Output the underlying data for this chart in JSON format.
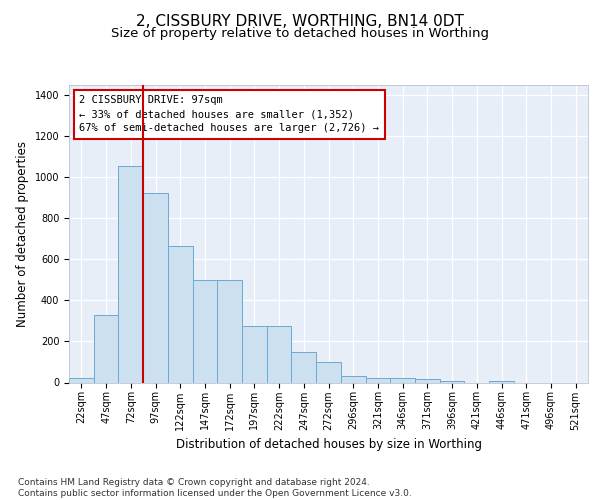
{
  "title": "2, CISSBURY DRIVE, WORTHING, BN14 0DT",
  "subtitle": "Size of property relative to detached houses in Worthing",
  "xlabel": "Distribution of detached houses by size in Worthing",
  "ylabel": "Number of detached properties",
  "categories": [
    "22sqm",
    "47sqm",
    "72sqm",
    "97sqm",
    "122sqm",
    "147sqm",
    "172sqm",
    "197sqm",
    "222sqm",
    "247sqm",
    "272sqm",
    "296sqm",
    "321sqm",
    "346sqm",
    "371sqm",
    "396sqm",
    "421sqm",
    "446sqm",
    "471sqm",
    "496sqm",
    "521sqm"
  ],
  "values": [
    20,
    330,
    1055,
    925,
    665,
    500,
    500,
    275,
    275,
    150,
    100,
    33,
    20,
    20,
    15,
    8,
    0,
    8,
    0,
    0,
    0
  ],
  "bar_color": "#cce0f0",
  "bar_edge_color": "#6aaad4",
  "highlight_bar_index": 3,
  "highlight_color": "#cc0000",
  "annotation_text": "2 CISSBURY DRIVE: 97sqm\n← 33% of detached houses are smaller (1,352)\n67% of semi-detached houses are larger (2,726) →",
  "annotation_box_color": "#ffffff",
  "annotation_box_edge_color": "#cc0000",
  "ylim": [
    0,
    1450
  ],
  "yticks": [
    0,
    200,
    400,
    600,
    800,
    1000,
    1200,
    1400
  ],
  "footer": "Contains HM Land Registry data © Crown copyright and database right 2024.\nContains public sector information licensed under the Open Government Licence v3.0.",
  "bg_color": "#f0f4fa",
  "plot_bg_color": "#e8eef8",
  "title_fontsize": 11,
  "subtitle_fontsize": 9.5,
  "axis_label_fontsize": 8.5,
  "tick_fontsize": 7,
  "footer_fontsize": 6.5
}
